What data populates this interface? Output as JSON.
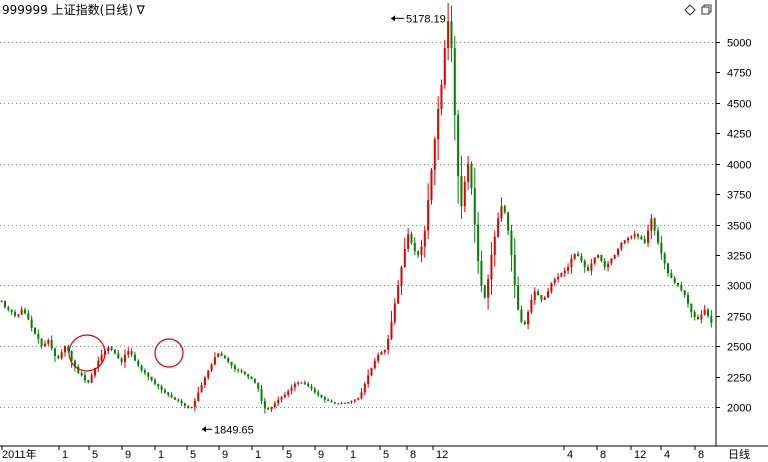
{
  "header": {
    "title": "999999 上证指数(日线) ∇",
    "diamond_icon": "diamond-icon",
    "restore_icon": "window-restore-icon"
  },
  "footer": {
    "period_label": "日线"
  },
  "colors": {
    "up": "#e00000",
    "down": "#007f00",
    "grid": "#808080",
    "axis": "#000000",
    "circle": "#e00000"
  },
  "chart_data": {
    "type": "line",
    "title": "",
    "ylim": [
      1900,
      5300
    ],
    "y_ticks": [
      2000,
      2250,
      2500,
      2750,
      3000,
      3250,
      3500,
      3750,
      4000,
      4250,
      4500,
      4750,
      5000
    ],
    "x_ticks": [
      "2011年",
      "1",
      "5",
      "9",
      "1",
      "5",
      "9",
      "1",
      "5",
      "9",
      "1",
      "5",
      "8",
      "12",
      "4",
      "8",
      "12",
      "4",
      "8"
    ],
    "grid": "dotted-horizontal",
    "annotations": [
      {
        "label": "5178.19",
        "value": 5178.19,
        "kind": "high"
      },
      {
        "label": "1849.65",
        "value": 1849.65,
        "kind": "low"
      }
    ],
    "highlight_circles": 2,
    "series": [
      {
        "values": [
          2870,
          2820,
          2800,
          2780,
          2750,
          2760,
          2800,
          2770,
          2720,
          2650,
          2600,
          2560,
          2500,
          2520,
          2550,
          2480,
          2420,
          2400,
          2450,
          2500,
          2460,
          2380,
          2330,
          2280,
          2260,
          2220,
          2200,
          2260,
          2320,
          2380,
          2430,
          2460,
          2490,
          2470,
          2440,
          2400,
          2370,
          2430,
          2460,
          2430,
          2380,
          2340,
          2300,
          2280,
          2250,
          2220,
          2190,
          2170,
          2140,
          2120,
          2100,
          2080,
          2060,
          2050,
          2030,
          2010,
          1990,
          2000,
          2050,
          2120,
          2180,
          2240,
          2300,
          2350,
          2410,
          2440,
          2420,
          2400,
          2370,
          2340,
          2310,
          2300,
          2290,
          2270,
          2250,
          2230,
          2200,
          2150,
          2050,
          1990,
          1980,
          2000,
          2030,
          2060,
          2080,
          2100,
          2130,
          2160,
          2190,
          2200,
          2200,
          2190,
          2170,
          2150,
          2120,
          2100,
          2080,
          2060,
          2050,
          2040,
          2030,
          2030,
          2030,
          2035,
          2040,
          2050,
          2060,
          2070,
          2120,
          2190,
          2260,
          2320,
          2380,
          2430,
          2450,
          2470,
          2560,
          2700,
          2850,
          3000,
          3150,
          3300,
          3420,
          3350,
          3280,
          3250,
          3320,
          3450,
          3700,
          3950,
          4200,
          4450,
          4650,
          4950,
          5170,
          4950,
          4400,
          3900,
          3650,
          3850,
          4000,
          3800,
          3500,
          3200,
          3000,
          2900,
          3050,
          3250,
          3400,
          3550,
          3650,
          3600,
          3450,
          3250,
          3000,
          2800,
          2700,
          2680,
          2780,
          2880,
          2950,
          2920,
          2880,
          2900,
          2950,
          3020,
          3050,
          3070,
          3100,
          3120,
          3150,
          3220,
          3260,
          3240,
          3200,
          3150,
          3120,
          3180,
          3230,
          3250,
          3200,
          3150,
          3180,
          3220,
          3250,
          3300,
          3350,
          3370,
          3390,
          3400,
          3420,
          3400,
          3380,
          3350,
          3450,
          3550,
          3450,
          3350,
          3260,
          3180,
          3100,
          3060,
          3020,
          3000,
          2960,
          2920,
          2850,
          2780,
          2740,
          2720,
          2760,
          2800,
          2750,
          2690
        ]
      }
    ]
  }
}
